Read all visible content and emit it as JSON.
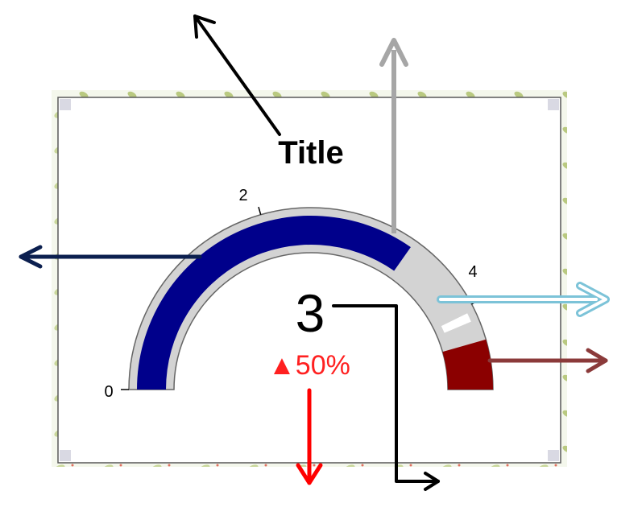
{
  "gauge": {
    "title": "Title",
    "value": "3",
    "delta": "▲50%",
    "ticks": {
      "min": "0",
      "mid": "2",
      "max": "4"
    }
  },
  "colors": {
    "track": "#d3d3d3",
    "value_bar": "#00008b",
    "max_band": "#8b0000",
    "target_marker": "#ffffff",
    "delta_text": "#ff2020",
    "arrow_title": "#000000",
    "arrow_track": "#a6a6a6",
    "arrow_value_bar": "#0b1f4f",
    "arrow_target": "#7cc3d8",
    "arrow_max_band": "#8b3a3a",
    "arrow_delta": "#ff0000",
    "arrow_value": "#000000"
  }
}
